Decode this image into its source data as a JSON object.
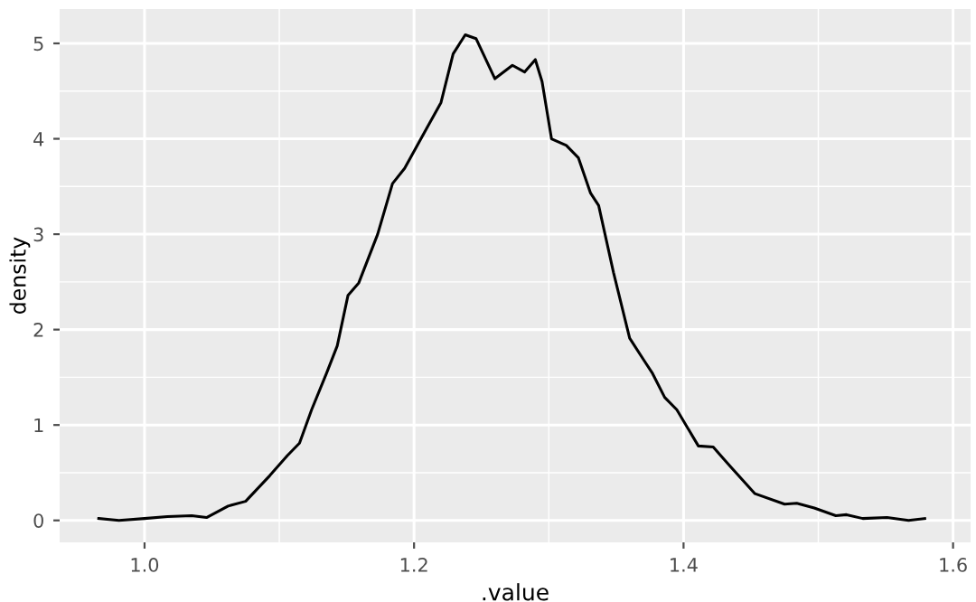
{
  "chart_data": {
    "type": "line",
    "xlabel": ".value",
    "ylabel": "density",
    "series": [
      {
        "color": "#000000",
        "x": [
          0.966,
          0.981,
          1.0,
          1.017,
          1.035,
          1.046,
          1.062,
          1.075,
          1.093,
          1.106,
          1.115,
          1.124,
          1.135,
          1.143,
          1.151,
          1.159,
          1.173,
          1.184,
          1.193,
          1.209,
          1.22,
          1.229,
          1.238,
          1.246,
          1.26,
          1.273,
          1.282,
          1.29,
          1.295,
          1.302,
          1.313,
          1.322,
          1.331,
          1.337,
          1.348,
          1.36,
          1.371,
          1.377,
          1.386,
          1.395,
          1.411,
          1.422,
          1.435,
          1.453,
          1.475,
          1.484,
          1.497,
          1.513,
          1.521,
          1.533,
          1.551,
          1.567,
          1.579
        ],
        "values": [
          0.02,
          0.0,
          0.02,
          0.04,
          0.05,
          0.03,
          0.15,
          0.2,
          0.47,
          0.68,
          0.81,
          1.16,
          1.54,
          1.83,
          2.36,
          2.49,
          3.0,
          3.53,
          3.69,
          4.1,
          4.38,
          4.89,
          5.09,
          5.05,
          4.63,
          4.77,
          4.7,
          4.83,
          4.6,
          4.0,
          3.93,
          3.8,
          3.43,
          3.3,
          2.6,
          1.91,
          1.67,
          1.54,
          1.29,
          1.16,
          0.78,
          0.77,
          0.56,
          0.28,
          0.17,
          0.18,
          0.13,
          0.05,
          0.06,
          0.02,
          0.03,
          0.0,
          0.02
        ]
      }
    ],
    "xlim": [
      0.937,
      1.613
    ],
    "ylim": [
      -0.23,
      5.36
    ],
    "xticks": [
      {
        "value": 1.0,
        "label": "1.0"
      },
      {
        "value": 1.2,
        "label": "1.2"
      },
      {
        "value": 1.4,
        "label": "1.4"
      },
      {
        "value": 1.6,
        "label": "1.6"
      }
    ],
    "yticks": [
      0,
      1,
      2,
      3,
      4,
      5
    ],
    "grid": true,
    "marker": "none",
    "line_style": "solid"
  }
}
